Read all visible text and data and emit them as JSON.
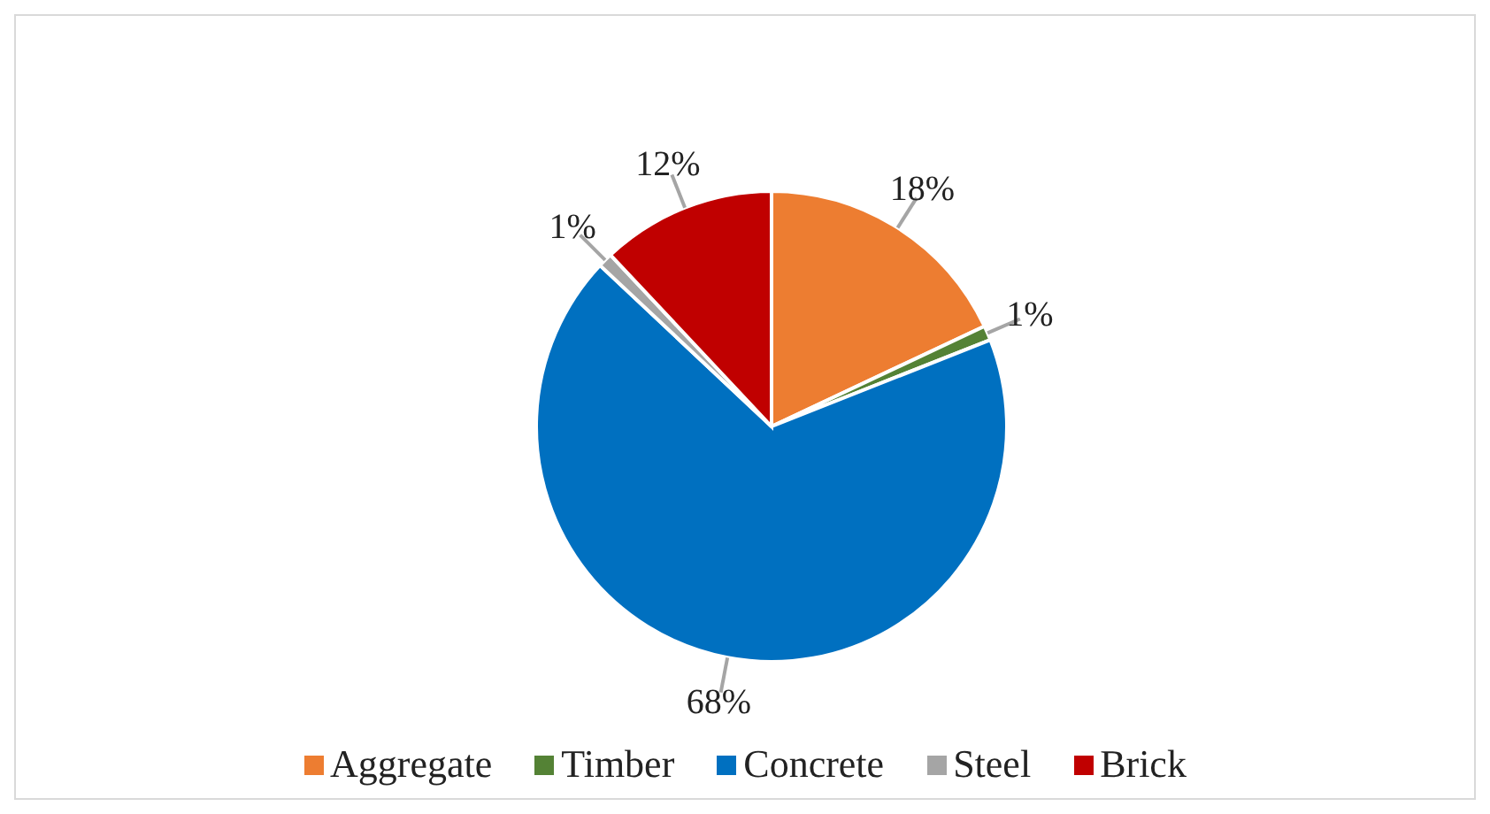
{
  "chart_data": {
    "type": "pie",
    "categories": [
      "Aggregate",
      "Timber",
      "Concrete",
      "Steel",
      "Brick"
    ],
    "values": [
      18,
      1,
      68,
      1,
      12
    ],
    "colors": [
      "#ed7d31",
      "#548235",
      "#0070c0",
      "#a5a5a5",
      "#c00000"
    ],
    "value_labels": [
      "18%",
      "1%",
      "68%",
      "1%",
      "12%"
    ],
    "legend": "bottom"
  }
}
